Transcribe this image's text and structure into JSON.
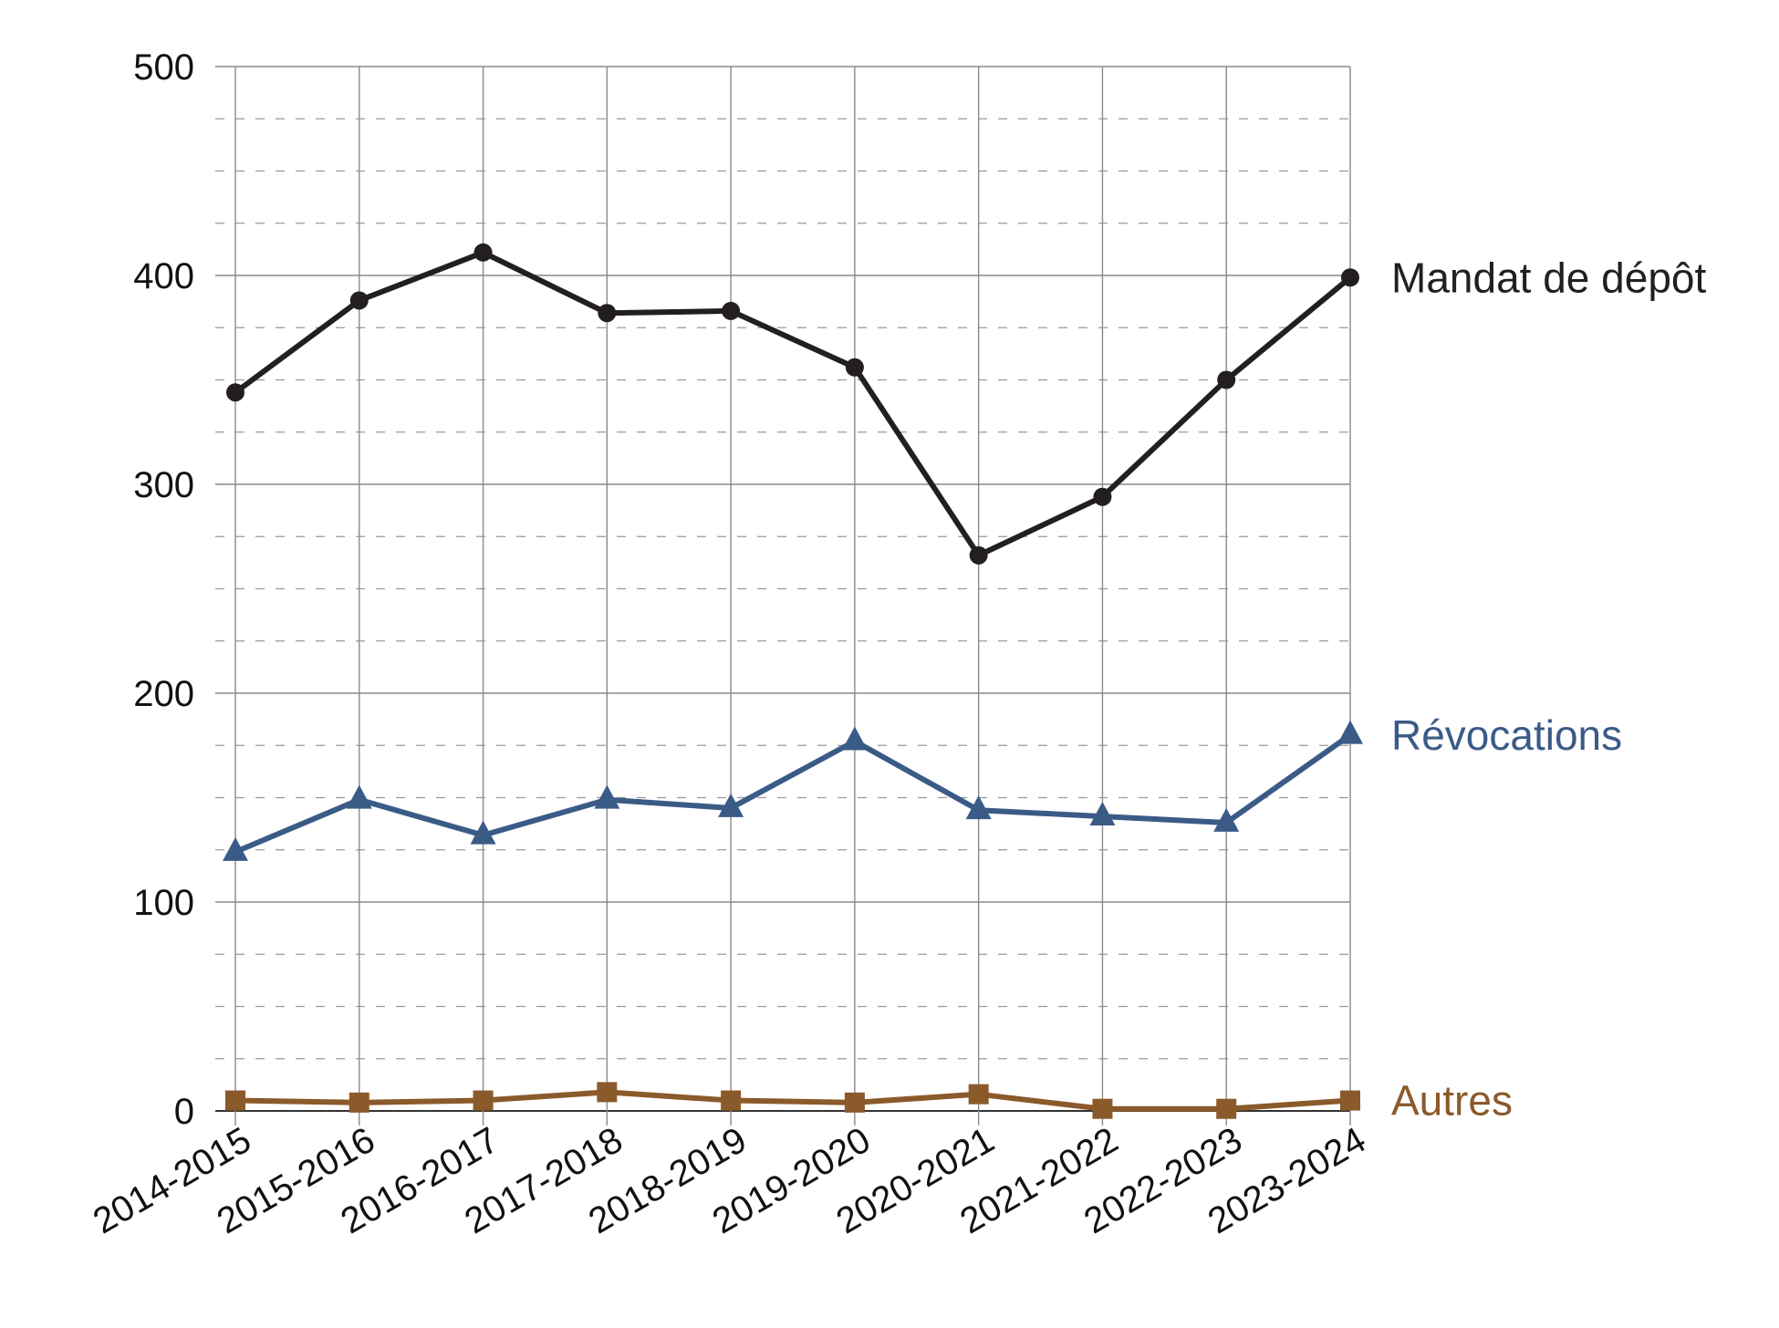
{
  "chart_data": {
    "type": "line",
    "title": "",
    "xlabel": "",
    "ylabel": "",
    "ylim": [
      0,
      500
    ],
    "yticks": [
      "0",
      "100",
      "200",
      "300",
      "400",
      "500"
    ],
    "grid": true,
    "legend": "end-of-line labels",
    "categories": [
      "2014-2015",
      "2015-2016",
      "2016-2017",
      "2017-2018",
      "2018-2019",
      "2019-2020",
      "2020-2021",
      "2021-2022",
      "2022-2023",
      "2023-2024"
    ],
    "series": [
      {
        "name": "Mandat de dépôt",
        "color": "#231f20",
        "marker": "circle",
        "values": [
          344,
          388,
          411,
          382,
          383,
          356,
          266,
          294,
          350,
          399
        ]
      },
      {
        "name": "Révocations",
        "color": "#3b5b87",
        "marker": "triangle",
        "values": [
          124,
          149,
          132,
          149,
          145,
          177,
          144,
          141,
          138,
          180
        ]
      },
      {
        "name": "Autres",
        "color": "#8b5a2b",
        "marker": "square",
        "values": [
          5,
          4,
          5,
          9,
          5,
          4,
          8,
          1,
          1,
          5
        ]
      }
    ]
  }
}
